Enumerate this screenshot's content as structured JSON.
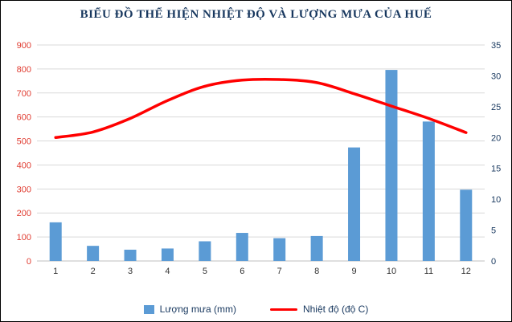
{
  "chart_data": {
    "type": "combo-bar-line",
    "title": "BIỂU ĐỒ THỂ HIỆN NHIỆT ĐỘ VÀ LƯỢNG MƯA CỦA HUẾ",
    "categories": [
      "1",
      "2",
      "3",
      "4",
      "5",
      "6",
      "7",
      "8",
      "9",
      "10",
      "11",
      "12"
    ],
    "series": [
      {
        "name": "Lượng mưa (mm)",
        "type": "bar",
        "axis": "left",
        "values": [
          161,
          63,
          47,
          52,
          82,
          117,
          95,
          104,
          473,
          796,
          581,
          297
        ],
        "color": "#5B9BD5"
      },
      {
        "name": "Nhiệt độ (độ C)",
        "type": "line",
        "axis": "right",
        "values": [
          20.0,
          20.9,
          23.1,
          26.0,
          28.3,
          29.3,
          29.4,
          28.9,
          27.1,
          25.1,
          23.1,
          20.8
        ],
        "color": "#FF0000"
      }
    ],
    "left_axis": {
      "min": 0,
      "max": 900,
      "step": 100,
      "tick_color": "#E03C31"
    },
    "right_axis": {
      "min": 0,
      "max": 35,
      "step": 5,
      "tick_color": "#17375E"
    },
    "x_tick_color": "#333333",
    "grid": true,
    "grid_color": "#D9D9D9",
    "axis_line_color": "#BFBFBF",
    "legend_position": "bottom",
    "title_color": "#17375E"
  }
}
